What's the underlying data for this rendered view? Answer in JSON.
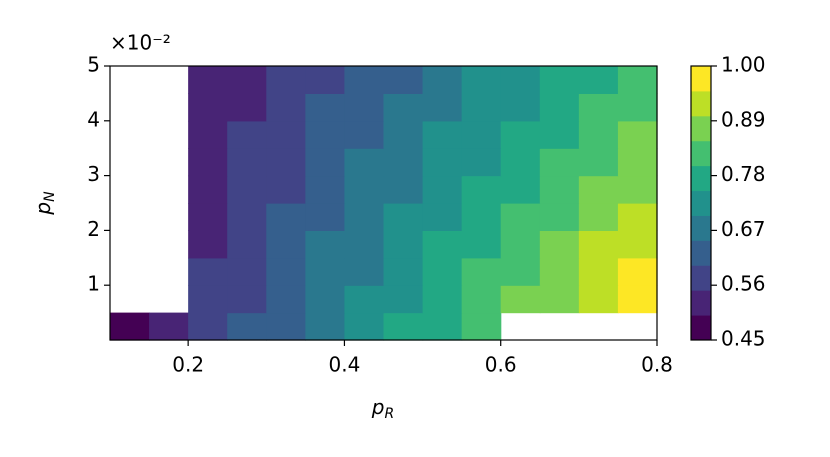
{
  "chart_data": {
    "type": "contour",
    "xlabel": {
      "text": "p",
      "subscript": "R"
    },
    "ylabel": {
      "text": "p",
      "subscript": "N"
    },
    "y_offset_text": "×10⁻²",
    "xlim": [
      0.1,
      0.8
    ],
    "ylim": [
      0,
      0.05
    ],
    "xticks": [
      0.2,
      0.4,
      0.6,
      0.8
    ],
    "yticks": [
      {
        "value": 0.01,
        "label": "1"
      },
      {
        "value": 0.02,
        "label": "2"
      },
      {
        "value": 0.03,
        "label": "3"
      },
      {
        "value": 0.04,
        "label": "4"
      },
      {
        "value": 0.05,
        "label": "5"
      }
    ],
    "x_edges": [
      0.1,
      0.15,
      0.2,
      0.25,
      0.3,
      0.35,
      0.4,
      0.45,
      0.5,
      0.55,
      0.6,
      0.65,
      0.7,
      0.75,
      0.8
    ],
    "y_edges": [
      0,
      0.005,
      0.01,
      0.015,
      0.02,
      0.025,
      0.03,
      0.035,
      0.04,
      0.045,
      0.05
    ],
    "z": [
      [
        0.48,
        0.52,
        0.56,
        0.6,
        0.64,
        0.68,
        0.71,
        0.75,
        0.79,
        0.83,
        null,
        null,
        null,
        null
      ],
      [
        null,
        null,
        0.55,
        0.59,
        0.63,
        0.67,
        0.7,
        0.74,
        0.78,
        0.82,
        0.86,
        0.89,
        0.93,
        0.97
      ],
      [
        null,
        null,
        0.55,
        0.58,
        0.62,
        0.66,
        0.69,
        0.73,
        0.77,
        0.8,
        0.84,
        0.88,
        0.91,
        0.95
      ],
      [
        null,
        null,
        0.54,
        0.58,
        0.61,
        0.65,
        0.68,
        0.72,
        0.75,
        0.79,
        0.82,
        0.86,
        0.9,
        0.93
      ],
      [
        null,
        null,
        0.53,
        0.57,
        0.6,
        0.64,
        0.67,
        0.71,
        0.74,
        0.77,
        0.81,
        0.84,
        0.88,
        0.91
      ],
      [
        null,
        null,
        0.53,
        0.56,
        0.59,
        0.63,
        0.66,
        0.69,
        0.73,
        0.76,
        0.79,
        0.83,
        0.86,
        0.89
      ],
      [
        null,
        null,
        0.52,
        0.55,
        0.59,
        0.62,
        0.65,
        0.68,
        0.71,
        0.74,
        0.78,
        0.81,
        0.84,
        0.87
      ],
      [
        null,
        null,
        0.52,
        0.55,
        0.58,
        0.61,
        0.64,
        0.67,
        0.7,
        0.73,
        0.76,
        0.79,
        0.82,
        0.85
      ],
      [
        null,
        null,
        0.51,
        0.54,
        0.57,
        0.6,
        0.63,
        0.66,
        0.69,
        0.72,
        0.74,
        0.77,
        0.8,
        0.83
      ],
      [
        null,
        null,
        0.51,
        0.53,
        0.56,
        0.59,
        0.62,
        0.64,
        0.67,
        0.7,
        0.73,
        0.76,
        0.78,
        0.81
      ]
    ],
    "levels": [
      0.45,
      0.5,
      0.55,
      0.6,
      0.65,
      0.7,
      0.75,
      0.8,
      0.85,
      0.9,
      0.95,
      1.0
    ],
    "colors": [
      "#440154",
      "#482475",
      "#414487",
      "#355f8d",
      "#2a788e",
      "#21918c",
      "#22a884",
      "#44bf70",
      "#7ad151",
      "#bddf26",
      "#fde725"
    ],
    "colorbar_lim": [
      0.45,
      1.0
    ],
    "colorbar_ticks": [
      0.45,
      0.56,
      0.67,
      0.78,
      0.89,
      {
        "value": 1.0,
        "label": "1.00"
      }
    ]
  }
}
